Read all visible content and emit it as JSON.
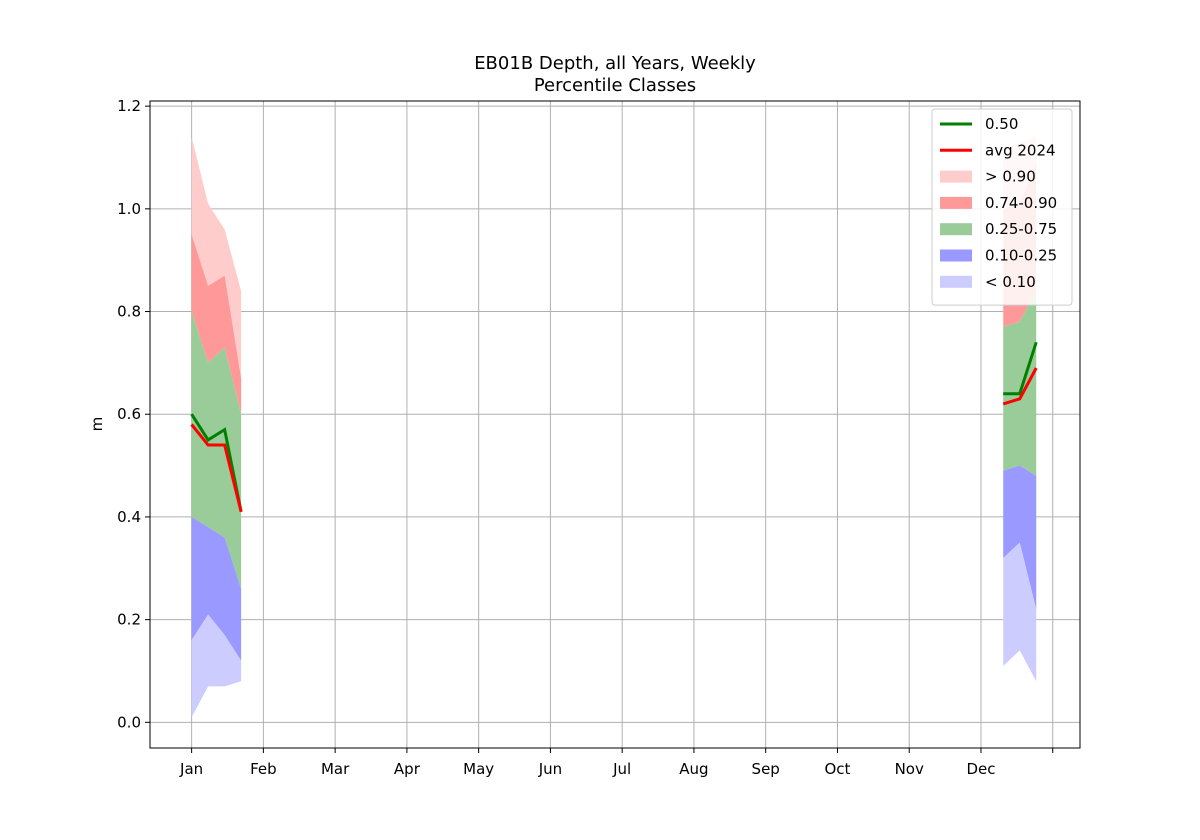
{
  "chart_data": {
    "type": "area",
    "title": "EB01B Depth, all Years, Weekly",
    "subtitle": "Percentile Classes",
    "xlabel": "",
    "ylabel": "m",
    "ylim": [
      -0.05,
      1.21
    ],
    "yticks": [
      0.0,
      0.2,
      0.4,
      0.6,
      0.8,
      1.0,
      1.2
    ],
    "ytick_labels": [
      "0.0",
      "0.2",
      "0.4",
      "0.6",
      "0.8",
      "1.0",
      "1.2"
    ],
    "xlim": [
      -0.58,
      12.38
    ],
    "xticks": [
      0,
      1,
      2,
      3,
      4,
      5,
      6,
      7,
      8,
      9,
      10,
      11,
      12
    ],
    "xtick_labels": [
      "Jan",
      "Feb",
      "Mar",
      "Apr",
      "May",
      "Jun",
      "Jul",
      "Aug",
      "Sep",
      "Oct",
      "Nov",
      "Dec",
      ""
    ],
    "grid": true,
    "legend_position": "top-right",
    "colors": {
      "median": "#008000",
      "avg": "#ff0000",
      "band_gt90": "#ffcccc",
      "band_74_90": "#ff9999",
      "band_25_75": "#99cc99",
      "band_10_25": "#9999ff",
      "band_lt10": "#ccccff",
      "grid": "#b0b0b0"
    },
    "segments": [
      {
        "x": [
          0.0,
          0.23,
          0.46,
          0.69
        ],
        "p0": [
          0.01,
          0.07,
          0.07,
          0.08
        ],
        "p10": [
          0.16,
          0.21,
          0.17,
          0.12
        ],
        "p25": [
          0.4,
          0.38,
          0.36,
          0.26
        ],
        "p75": [
          0.8,
          0.7,
          0.73,
          0.6
        ],
        "p90": [
          0.95,
          0.85,
          0.87,
          0.67
        ],
        "p100": [
          1.14,
          1.01,
          0.96,
          0.84
        ],
        "median": [
          0.6,
          0.55,
          0.57,
          0.41
        ],
        "avg": [
          0.58,
          0.54,
          0.54,
          0.41
        ]
      },
      {
        "x": [
          11.31,
          11.54,
          11.77
        ],
        "p0": [
          0.11,
          0.14,
          0.08
        ],
        "p10": [
          0.32,
          0.35,
          0.22
        ],
        "p25": [
          0.49,
          0.5,
          0.48
        ],
        "p75": [
          0.77,
          0.78,
          0.84
        ],
        "p90": [
          1.0,
          1.01,
          1.09
        ],
        "p100": [
          1.1,
          1.13,
          1.14
        ],
        "median": [
          0.64,
          0.64,
          0.74
        ],
        "avg": [
          0.62,
          0.63,
          0.69
        ]
      }
    ],
    "series": [
      {
        "name": "0.50",
        "kind": "line",
        "color": "#008000"
      },
      {
        "name": "avg 2024",
        "kind": "line",
        "color": "#ff0000"
      },
      {
        "name": "> 0.90",
        "kind": "band",
        "color": "#ffcccc"
      },
      {
        "name": "0.74-0.90",
        "kind": "band",
        "color": "#ff9999"
      },
      {
        "name": "0.25-0.75",
        "kind": "band",
        "color": "#99cc99"
      },
      {
        "name": "0.10-0.25",
        "kind": "band",
        "color": "#9999ff"
      },
      {
        "name": "< 0.10",
        "kind": "band",
        "color": "#ccccff"
      }
    ]
  }
}
